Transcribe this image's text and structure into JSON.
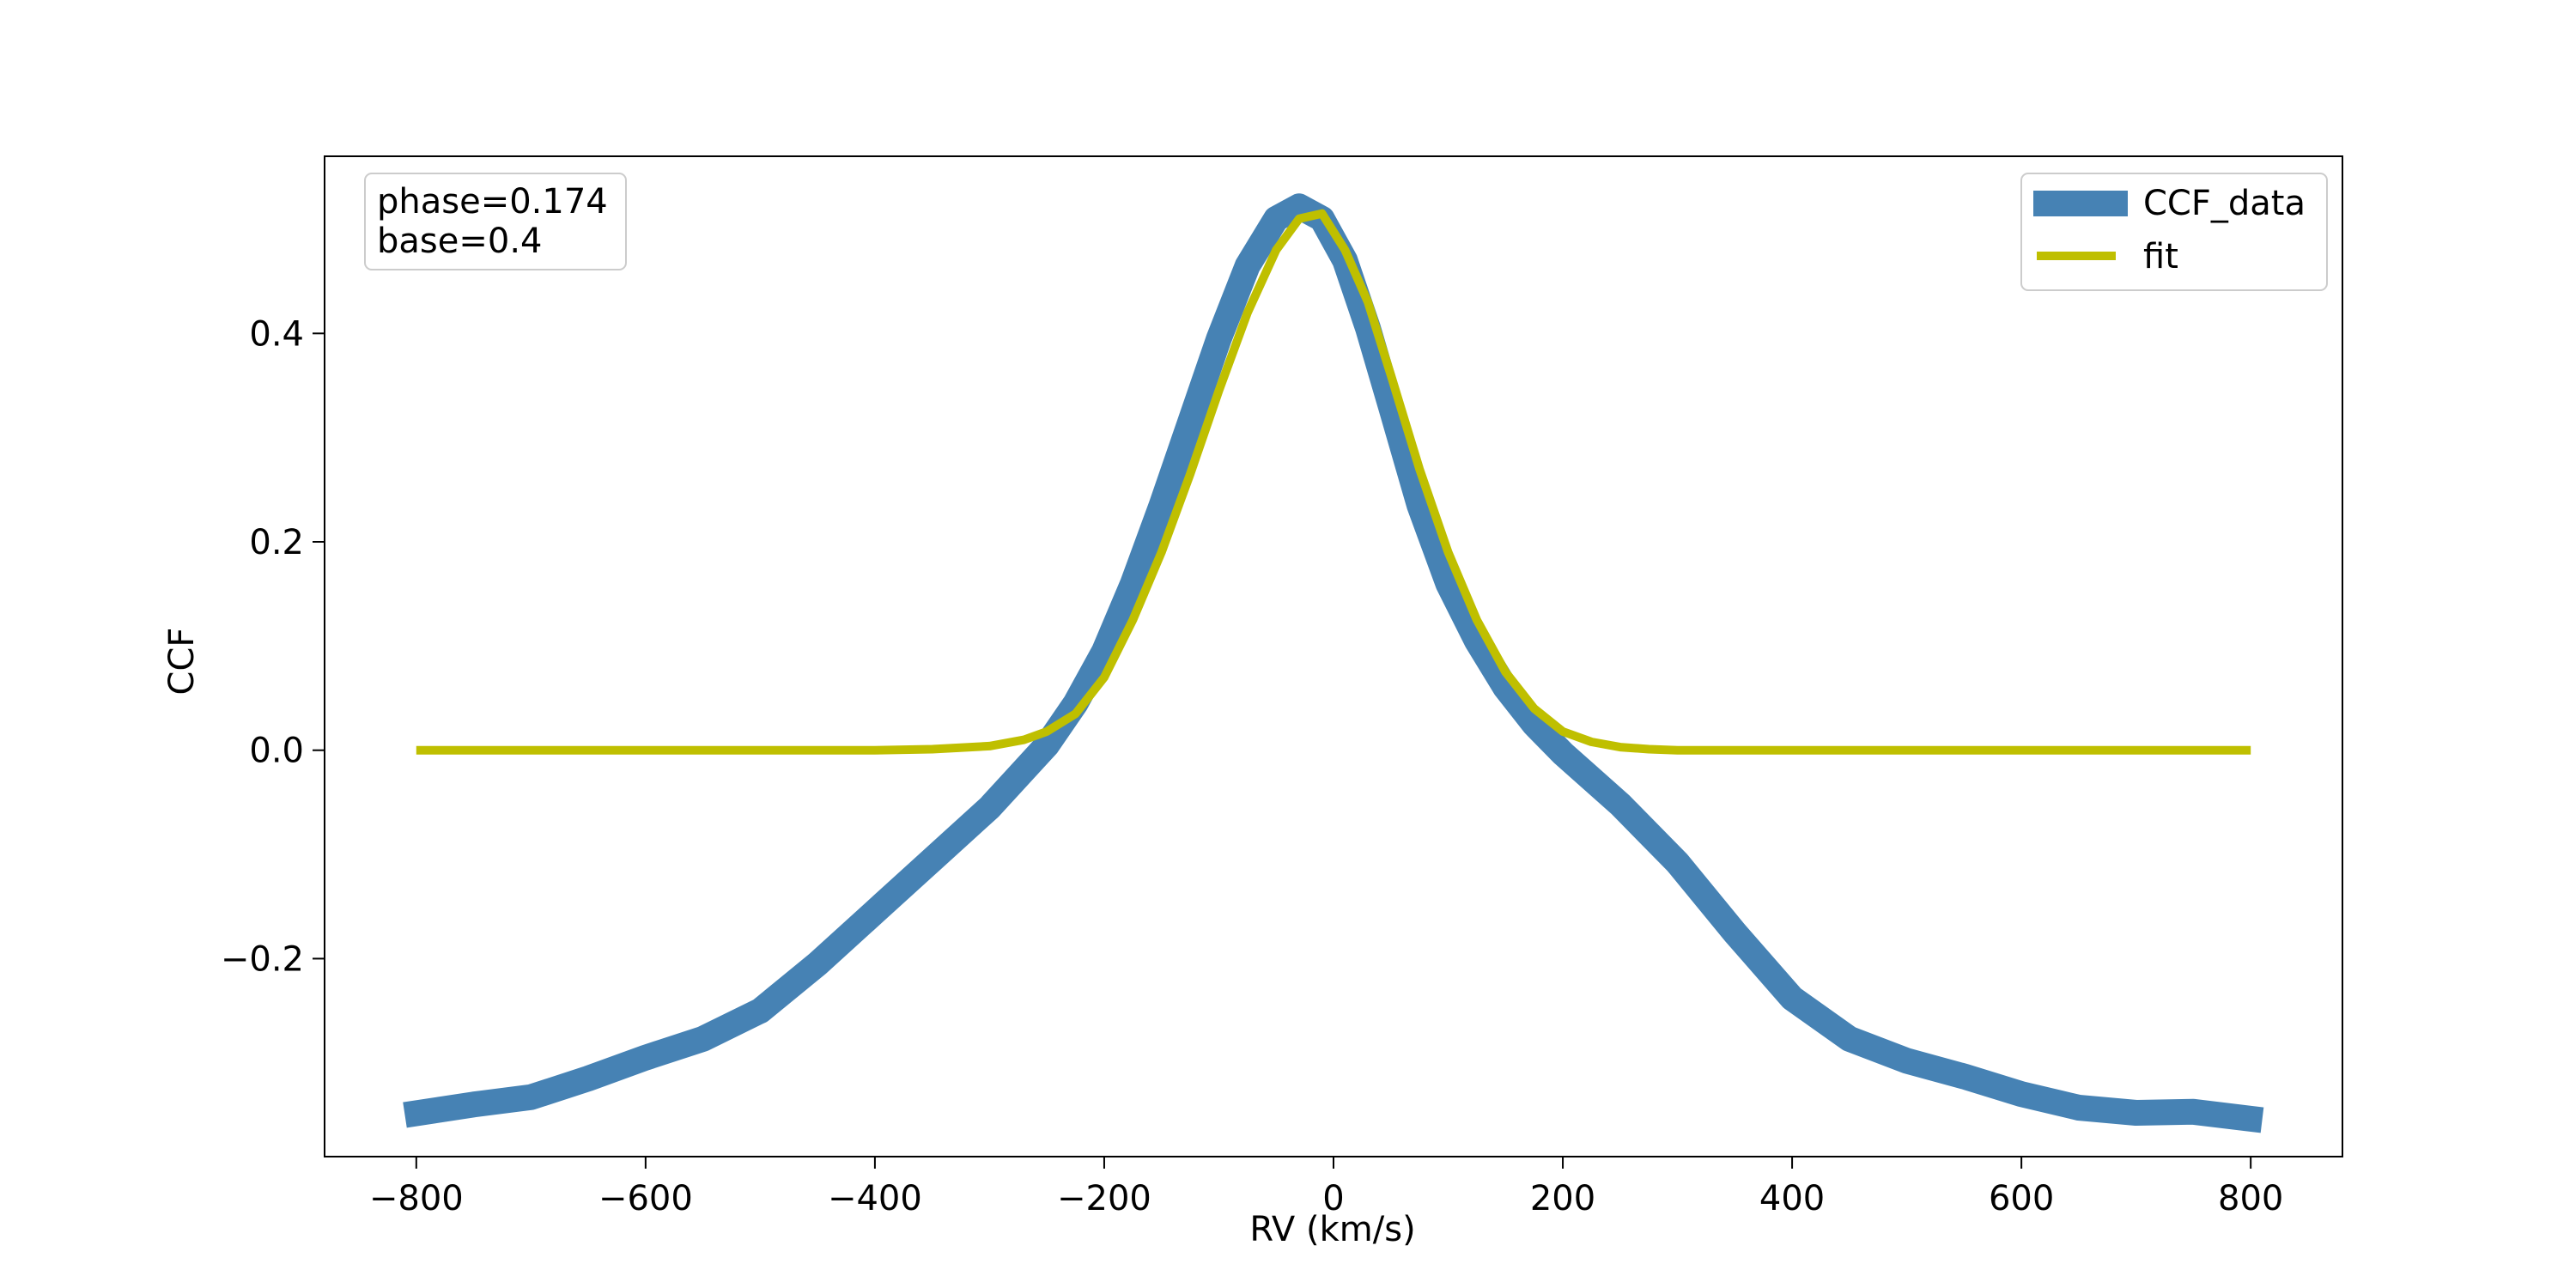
{
  "chart_data": {
    "type": "line",
    "title": "",
    "xlabel": "RV (km/s)",
    "ylabel": "CCF",
    "xlim": [
      -880,
      880
    ],
    "ylim": [
      -0.39,
      0.57
    ],
    "x_ticks": [
      -800,
      -600,
      -400,
      -200,
      0,
      200,
      400,
      600,
      800
    ],
    "x_tick_labels": [
      "−800",
      "−600",
      "−400",
      "−200",
      "0",
      "200",
      "400",
      "600",
      "800"
    ],
    "y_ticks": [
      -0.2,
      0.0,
      0.2,
      0.4
    ],
    "y_tick_labels": [
      "−0.2",
      "0.0",
      "0.2",
      "0.4"
    ],
    "grid": false,
    "legend_position": "top-right",
    "annotation": [
      "phase=0.174",
      "base=0.4"
    ],
    "series": [
      {
        "name": "CCF_data",
        "color": "#4682b4",
        "style": "thick-line",
        "x": [
          -810,
          -750,
          -700,
          -650,
          -600,
          -550,
          -500,
          -450,
          -400,
          -350,
          -300,
          -250,
          -225,
          -200,
          -175,
          -150,
          -125,
          -100,
          -75,
          -50,
          -30,
          -10,
          10,
          30,
          50,
          75,
          100,
          125,
          150,
          175,
          200,
          250,
          300,
          350,
          400,
          450,
          500,
          550,
          600,
          650,
          700,
          750,
          810
        ],
        "y": [
          -0.35,
          -0.34,
          -0.333,
          -0.315,
          -0.295,
          -0.277,
          -0.25,
          -0.205,
          -0.155,
          -0.105,
          -0.055,
          0.005,
          0.045,
          0.095,
          0.16,
          0.235,
          0.315,
          0.395,
          0.465,
          0.51,
          0.522,
          0.51,
          0.47,
          0.405,
          0.33,
          0.235,
          0.16,
          0.105,
          0.06,
          0.025,
          -0.003,
          -0.052,
          -0.108,
          -0.175,
          -0.238,
          -0.277,
          -0.298,
          -0.313,
          -0.33,
          -0.343,
          -0.348,
          -0.347,
          -0.355
        ]
      },
      {
        "name": "fit",
        "color": "#bfbf00",
        "style": "line",
        "x": [
          -800,
          -700,
          -600,
          -500,
          -400,
          -350,
          -300,
          -270,
          -250,
          -225,
          -200,
          -175,
          -150,
          -125,
          -100,
          -75,
          -50,
          -30,
          -10,
          10,
          30,
          50,
          75,
          100,
          125,
          150,
          175,
          200,
          225,
          250,
          275,
          300,
          350,
          400,
          500,
          600,
          700,
          800
        ],
        "y": [
          0,
          0,
          0,
          0,
          0.0,
          0.001,
          0.004,
          0.01,
          0.018,
          0.035,
          0.07,
          0.125,
          0.19,
          0.265,
          0.345,
          0.42,
          0.48,
          0.51,
          0.515,
          0.48,
          0.43,
          0.36,
          0.27,
          0.19,
          0.125,
          0.075,
          0.04,
          0.018,
          0.008,
          0.003,
          0.001,
          0.0,
          0,
          0,
          0,
          0,
          0,
          0
        ]
      }
    ]
  }
}
